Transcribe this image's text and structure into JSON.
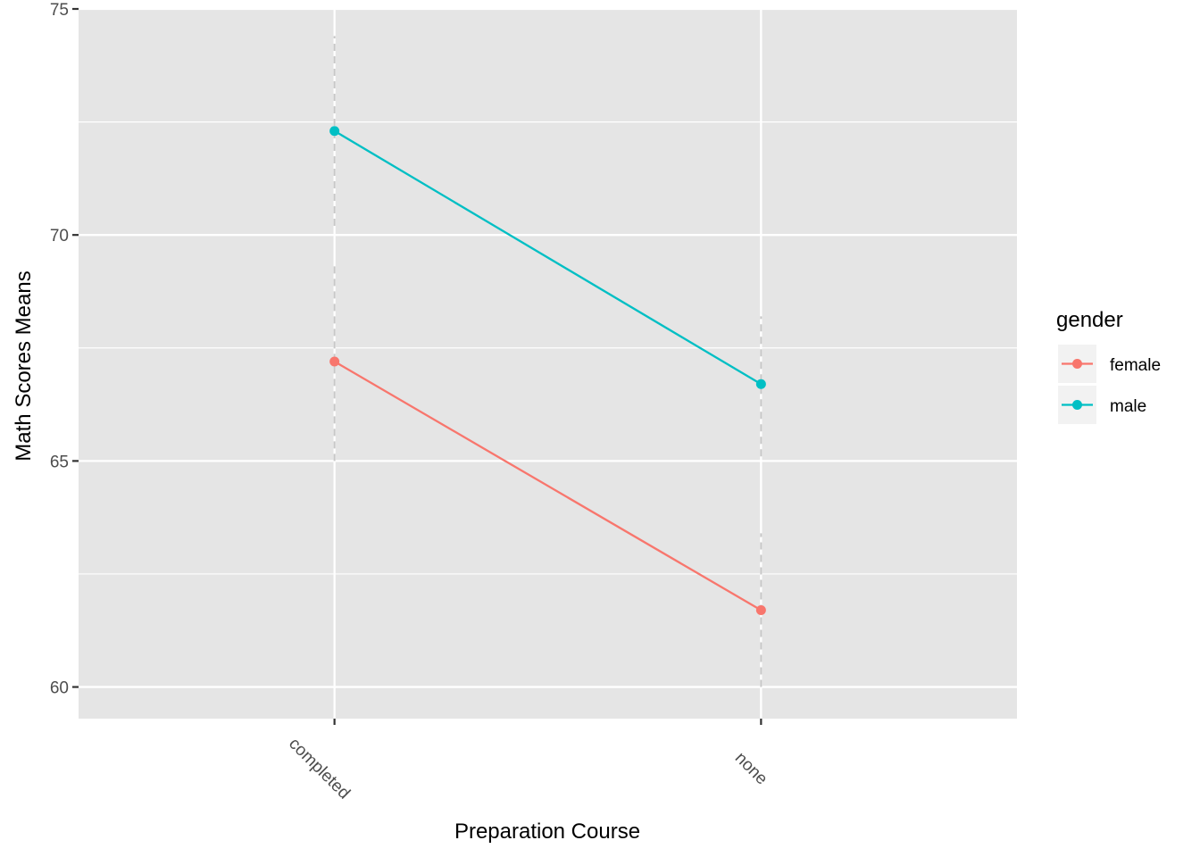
{
  "chart_data": {
    "type": "line",
    "title": "",
    "xlabel": "Preparation Course",
    "ylabel": "Math Scores Means",
    "categories": [
      "completed",
      "none"
    ],
    "ylim": [
      59.3,
      75
    ],
    "yticks": [
      60,
      65,
      70,
      75
    ],
    "y_minor_ticks": [
      62.5,
      67.5,
      72.5
    ],
    "x_tick_rotation_deg": 45,
    "grid": true,
    "legend": {
      "title": "gender",
      "position": "right"
    },
    "series": [
      {
        "name": "female",
        "color": "#F8766D",
        "values": [
          67.2,
          61.7
        ],
        "error_bars": [
          [
            65.0,
            69.4
          ],
          [
            60.0,
            63.4
          ]
        ]
      },
      {
        "name": "male",
        "color": "#00BFC4",
        "values": [
          72.3,
          66.7
        ],
        "error_bars": [
          [
            70.2,
            74.4
          ],
          [
            65.1,
            68.2
          ]
        ]
      }
    ]
  }
}
